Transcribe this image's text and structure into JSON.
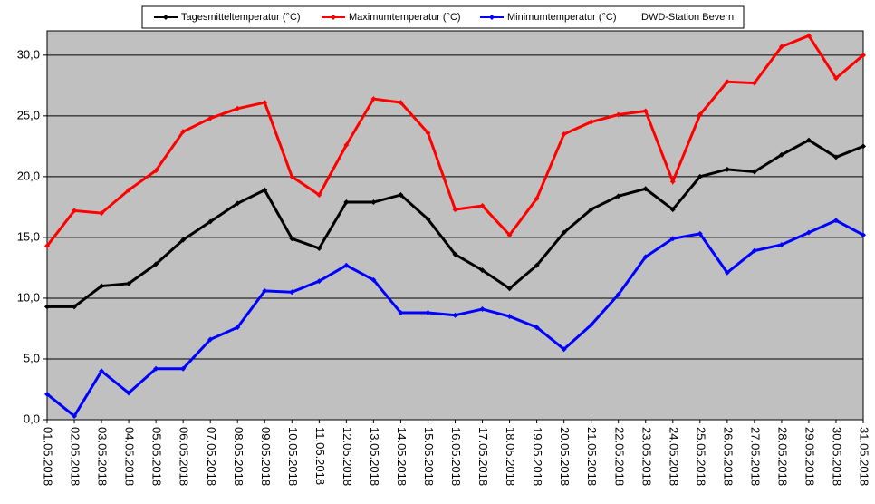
{
  "chart_data": {
    "type": "line",
    "annotation": "DWD-Station Bevern",
    "categories": [
      "01.05.2018",
      "02.05.2018",
      "03.05.2018",
      "04.05.2018",
      "05.05.2018",
      "06.05.2018",
      "07.05.2018",
      "08.05.2018",
      "09.05.2018",
      "10.05.2018",
      "11.05.2018",
      "12.05.2018",
      "13.05.2018",
      "14.05.2018",
      "15.05.2018",
      "16.05.2018",
      "17.05.2018",
      "18.05.2018",
      "19.05.2018",
      "20.05.2018",
      "21.05.2018",
      "22.05.2018",
      "23.05.2018",
      "24.05.2018",
      "25.05.2018",
      "26.05.2018",
      "27.05.2018",
      "28.05.2018",
      "29.05.2018",
      "30.05.2018",
      "31.05.2018"
    ],
    "series": [
      {
        "name": "Tagesmitteltemperatur (°C)",
        "color": "#000000",
        "values": [
          9.3,
          9.3,
          11.0,
          11.2,
          12.8,
          14.8,
          16.3,
          17.8,
          18.9,
          14.9,
          14.1,
          17.9,
          17.9,
          18.5,
          16.5,
          13.6,
          12.3,
          10.8,
          12.7,
          15.4,
          17.3,
          18.4,
          19.0,
          17.3,
          20.0,
          20.6,
          20.4,
          21.8,
          23.0,
          21.6,
          22.5
        ]
      },
      {
        "name": "Maximumtemperatur (°C)",
        "color": "#ff0000",
        "values": [
          14.3,
          17.2,
          17.0,
          18.9,
          20.5,
          23.7,
          24.8,
          25.6,
          26.1,
          20.0,
          18.5,
          22.6,
          26.4,
          26.1,
          23.6,
          17.3,
          17.6,
          15.2,
          18.2,
          23.5,
          24.5,
          25.1,
          25.4,
          19.6,
          25.1,
          27.8,
          27.7,
          30.7,
          31.6,
          28.1,
          30.0
        ]
      },
      {
        "name": "Minimumtemperatur (°C)",
        "color": "#0000ff",
        "values": [
          2.1,
          0.3,
          4.0,
          2.2,
          4.2,
          4.2,
          6.6,
          7.6,
          10.6,
          10.5,
          11.4,
          12.7,
          11.5,
          8.8,
          8.8,
          8.6,
          9.1,
          8.5,
          7.6,
          5.8,
          7.8,
          10.3,
          13.4,
          14.9,
          15.3,
          12.1,
          13.9,
          14.4,
          15.4,
          16.4,
          15.2
        ]
      }
    ],
    "ylim": [
      0,
      32
    ],
    "yticks": [
      {
        "value": 0,
        "label": "0,0"
      },
      {
        "value": 5,
        "label": "5,0"
      },
      {
        "value": 10,
        "label": "10,0"
      },
      {
        "value": 15,
        "label": "15,0"
      },
      {
        "value": 20,
        "label": "20,0"
      },
      {
        "value": 25,
        "label": "25,0"
      },
      {
        "value": 30,
        "label": "30,0"
      }
    ],
    "grid": true,
    "plot_background": "#c0c0c0"
  }
}
